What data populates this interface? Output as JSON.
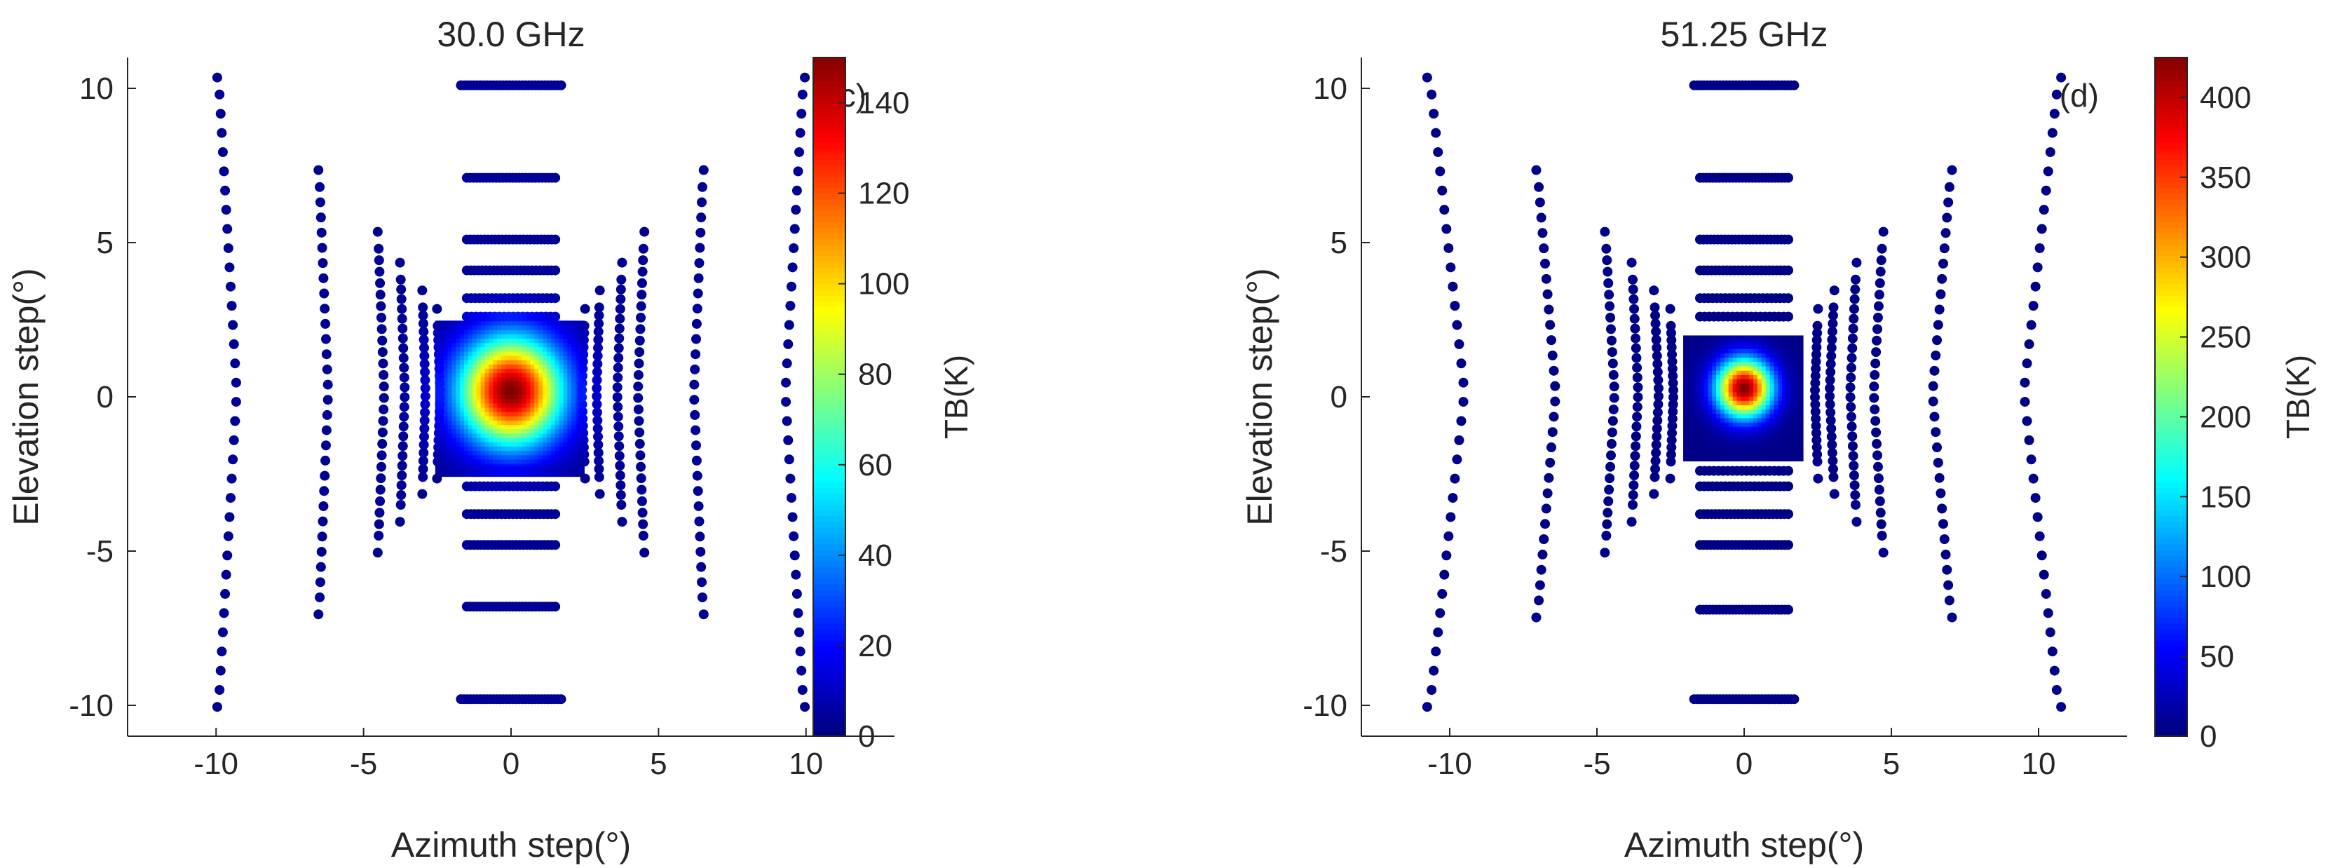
{
  "chart_data": [
    {
      "type": "scatter",
      "title": "30.0 GHz",
      "panel_label": "(c)",
      "xlabel": "Azimuth step(°)",
      "ylabel": "Elevation step(°)",
      "xlim": [
        -13,
        13
      ],
      "ylim": [
        -11,
        11
      ],
      "x_ticks": [
        -10,
        -5,
        0,
        5,
        10
      ],
      "y_ticks": [
        -10,
        -5,
        0,
        5,
        10
      ],
      "colorbar": {
        "label": "TB(K)",
        "colormap": "jet",
        "range": [
          0,
          150
        ],
        "ticks": [
          0,
          20,
          40,
          60,
          80,
          100,
          120,
          140
        ]
      },
      "peak": {
        "x": 0,
        "y": 0.2,
        "tb": 150
      },
      "background_tb": 3,
      "hot_spot": {
        "radius": 2.6,
        "sigma": 1.2,
        "edge": 2.5
      },
      "scan_rings": [
        {
          "half_width": 1.7,
          "top": 10.1,
          "bottom": -9.8,
          "outer_x": [
            9.3,
            10.5
          ],
          "points": 32
        },
        {
          "half_width": 1.5,
          "top": 7.1,
          "bottom": -6.8,
          "outer_x": [
            6.2,
            6.8
          ],
          "points": 28
        },
        {
          "half_width": 1.5,
          "top": 5.1,
          "bottom": -4.8,
          "outer_x": [
            4.3,
            4.7
          ],
          "points": 26
        },
        {
          "half_width": 1.5,
          "top": 4.1,
          "bottom": -3.8,
          "outer_x": [
            3.6,
            3.9
          ],
          "points": 24
        },
        {
          "half_width": 1.5,
          "top": 3.2,
          "bottom": -2.9,
          "outer_x": [
            2.9,
            3.1
          ],
          "points": 22
        },
        {
          "half_width": 1.5,
          "top": 2.6,
          "bottom": -2.4,
          "outer_x": [
            2.4,
            2.6
          ],
          "points": 20
        }
      ]
    },
    {
      "type": "scatter",
      "title": "51.25 GHz",
      "panel_label": "(d)",
      "xlabel": "Azimuth step(°)",
      "ylabel": "Elevation step(°)",
      "xlim": [
        -13,
        13
      ],
      "ylim": [
        -11,
        11
      ],
      "x_ticks": [
        -10,
        -5,
        0,
        5,
        10
      ],
      "y_ticks": [
        -10,
        -5,
        0,
        5,
        10
      ],
      "colorbar": {
        "label": "TB(K)",
        "colormap": "jet",
        "range": [
          0,
          425
        ],
        "ticks": [
          0,
          50,
          100,
          150,
          200,
          250,
          300,
          350,
          400
        ]
      },
      "peak": {
        "x": 0,
        "y": 0.3,
        "tb": 425
      },
      "background_tb": 3,
      "hot_spot": {
        "radius": 1.5,
        "sigma": 0.65,
        "edge": 2.0
      },
      "scan_rings": [
        {
          "half_width": 1.7,
          "top": 10.1,
          "bottom": -9.8,
          "outer_x": [
            9.5,
            11.8
          ],
          "points": 32
        },
        {
          "half_width": 1.5,
          "top": 7.1,
          "bottom": -6.9,
          "outer_x": [
            6.4,
            7.6
          ],
          "points": 28
        },
        {
          "half_width": 1.5,
          "top": 5.1,
          "bottom": -4.8,
          "outer_x": [
            4.4,
            5.0
          ],
          "points": 26
        },
        {
          "half_width": 1.5,
          "top": 4.1,
          "bottom": -3.8,
          "outer_x": [
            3.6,
            4.0
          ],
          "points": 24
        },
        {
          "half_width": 1.5,
          "top": 3.2,
          "bottom": -2.9,
          "outer_x": [
            2.9,
            3.2
          ],
          "points": 22
        },
        {
          "half_width": 1.5,
          "top": 2.6,
          "bottom": -2.4,
          "outer_x": [
            2.4,
            2.6
          ],
          "points": 20
        }
      ]
    }
  ]
}
